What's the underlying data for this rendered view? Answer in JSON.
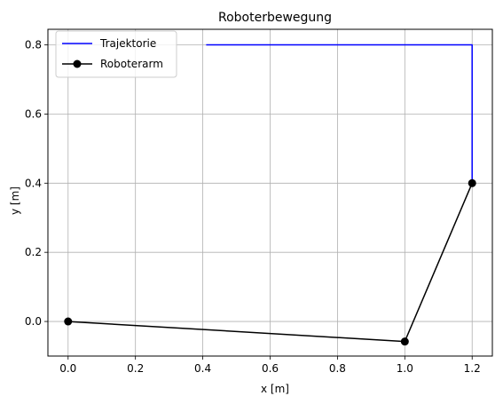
{
  "chart_data": {
    "type": "line",
    "title": "Roboterbewegung",
    "xlabel": "x [m]",
    "ylabel": "y [m]",
    "xlim": [
      -0.06,
      1.26
    ],
    "ylim": [
      -0.1,
      0.845
    ],
    "xticks": [
      0.0,
      0.2,
      0.4,
      0.6,
      0.8,
      1.0,
      1.2
    ],
    "xtick_labels": [
      "0.0",
      "0.2",
      "0.4",
      "0.6",
      "0.8",
      "1.0",
      "1.2"
    ],
    "yticks": [
      0.0,
      0.2,
      0.4,
      0.6,
      0.8
    ],
    "ytick_labels": [
      "0.0",
      "0.2",
      "0.4",
      "0.6",
      "0.8"
    ],
    "grid": true,
    "legend_position": "top-left",
    "series": [
      {
        "name": "Trajektorie",
        "color": "#0000ff",
        "marker": "none",
        "x": [
          0.41,
          1.2,
          1.2
        ],
        "y": [
          0.8,
          0.8,
          0.4
        ]
      },
      {
        "name": "Roboterarm",
        "color": "#000000",
        "marker": "circle",
        "x": [
          0.0,
          1.0,
          1.2
        ],
        "y": [
          0.0,
          -0.058,
          0.4
        ]
      }
    ]
  }
}
